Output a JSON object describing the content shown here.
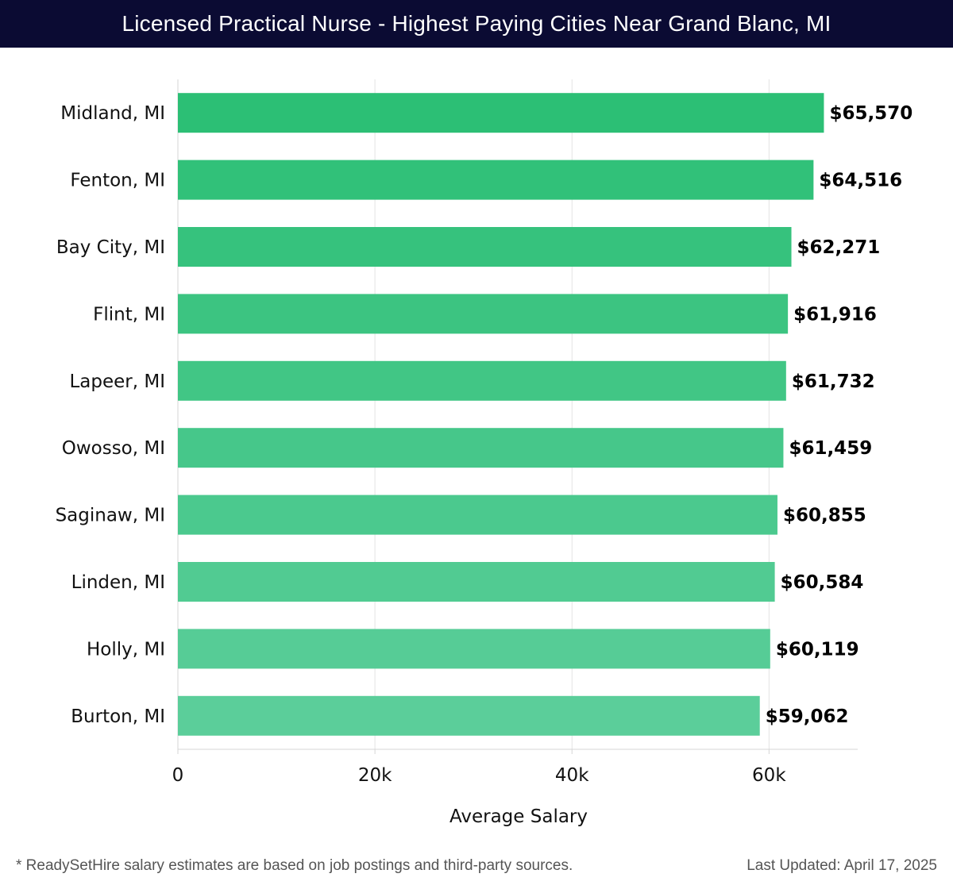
{
  "header": {
    "title": "Licensed Practical Nurse - Highest Paying Cities Near Grand Blanc, MI"
  },
  "footer": {
    "note": "* ReadySetHire salary estimates are based on job postings and third-party sources.",
    "updated": "Last Updated: April 17, 2025"
  },
  "chart_data": {
    "type": "bar",
    "orientation": "horizontal",
    "title": "Licensed Practical Nurse - Highest Paying Cities Near Grand Blanc, MI",
    "xlabel": "Average Salary",
    "ylabel": "",
    "categories": [
      "Midland, MI",
      "Fenton, MI",
      "Bay City, MI",
      "Flint, MI",
      "Lapeer, MI",
      "Owosso, MI",
      "Saginaw, MI",
      "Linden, MI",
      "Holly, MI",
      "Burton, MI"
    ],
    "values": [
      65570,
      64516,
      62271,
      61916,
      61732,
      61459,
      60855,
      60584,
      60119,
      59062
    ],
    "value_labels": [
      "$65,570",
      "$64,516",
      "$62,271",
      "$61,916",
      "$61,732",
      "$61,459",
      "$60,855",
      "$60,584",
      "$60,119",
      "$59,062"
    ],
    "xlim": [
      0,
      69000
    ],
    "xticks": [
      0,
      20000,
      40000,
      60000
    ],
    "xtick_labels": [
      "0",
      "20k",
      "40k",
      "60k"
    ],
    "grid": true,
    "colors": {
      "bar_top": "#2cbf75",
      "bar_bottom": "#5bce9a",
      "grid": "#e3e3e3",
      "text": "#111111"
    }
  }
}
